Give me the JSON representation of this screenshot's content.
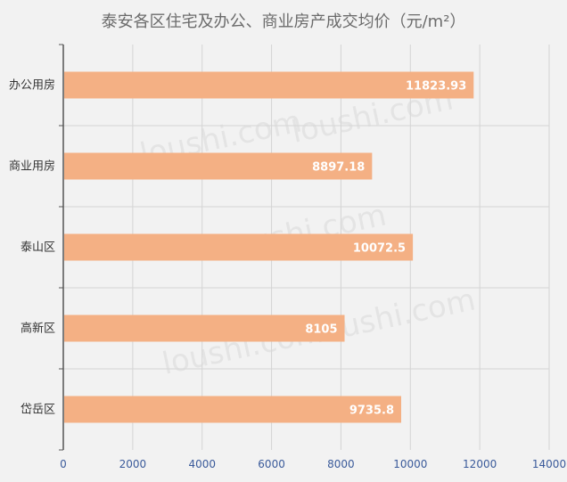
{
  "chart_data": {
    "type": "bar",
    "orientation": "horizontal",
    "title": "泰安各区住宅及办公、商业房产成交均价（元/m²）",
    "categories": [
      "办公用房",
      "商业用房",
      "泰山区",
      "高新区",
      "岱岳区"
    ],
    "values": [
      11823.93,
      8897.18,
      10072.5,
      8105,
      9735.8
    ],
    "value_labels": [
      "11823.93",
      "8897.18",
      "10072.5",
      "8105",
      "9735.8"
    ],
    "xlim": [
      0,
      14000
    ],
    "xticks": [
      0,
      2000,
      4000,
      6000,
      8000,
      10000,
      12000,
      14000
    ],
    "xlabel": "",
    "ylabel": "",
    "grid": true,
    "bar_color": "#f4b084",
    "watermark": "loushi.com"
  }
}
